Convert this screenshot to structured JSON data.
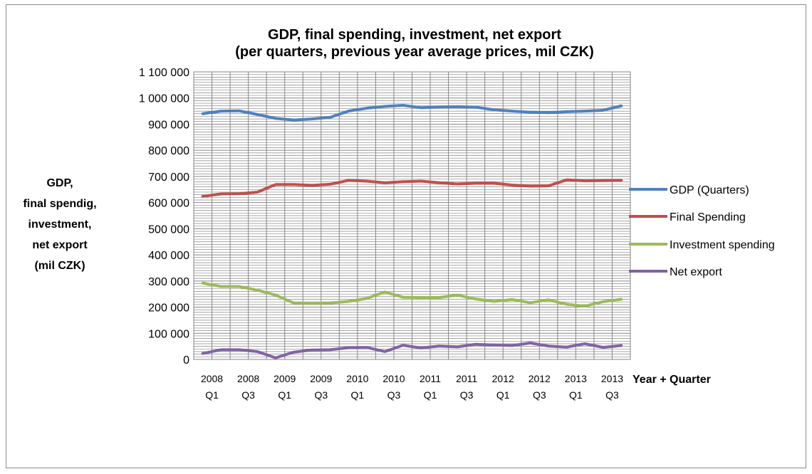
{
  "chart_data": {
    "type": "line",
    "title_lines": [
      "GDP, final spending, investment, net export",
      "(per quarters, previous year average prices, mil CZK)"
    ],
    "ylabel_lines": [
      "GDP,",
      "final spendig,",
      "investment,",
      "net export",
      "(mil CZK)"
    ],
    "xlabel": "Year + Quarter",
    "ylim": [
      0,
      1100000
    ],
    "y_ticks": [
      "0",
      "100 000",
      "200 000",
      "300 000",
      "400 000",
      "500 000",
      "600 000",
      "700 000",
      "800 000",
      "900 000",
      "1 000 000",
      "1 100 000"
    ],
    "x": [
      "2008 Q1",
      "2008 Q2",
      "2008 Q3",
      "2008 Q4",
      "2009 Q1",
      "2009 Q2",
      "2009 Q3",
      "2009 Q4",
      "2010 Q1",
      "2010 Q2",
      "2010 Q3",
      "2010 Q4",
      "2011 Q1",
      "2011 Q2",
      "2011 Q3",
      "2011 Q4",
      "2012 Q1",
      "2012 Q2",
      "2012 Q3",
      "2012 Q4",
      "2013 Q1",
      "2013 Q2",
      "2013 Q3",
      "2013 Q4"
    ],
    "x_tick_labels": [
      [
        "2008",
        "Q1"
      ],
      [
        "2008",
        "Q3"
      ],
      [
        "2009",
        "Q1"
      ],
      [
        "2009",
        "Q3"
      ],
      [
        "2010",
        "Q1"
      ],
      [
        "2010",
        "Q3"
      ],
      [
        "2011",
        "Q1"
      ],
      [
        "2011",
        "Q3"
      ],
      [
        "2012",
        "Q1"
      ],
      [
        "2012",
        "Q3"
      ],
      [
        "2013",
        "Q1"
      ],
      [
        "2013",
        "Q3"
      ]
    ],
    "grid": true,
    "legend_position": "right",
    "series": [
      {
        "name": "GDP (Quarters)",
        "color": "#4f81bd",
        "values": [
          940000,
          950000,
          951000,
          937000,
          922000,
          916000,
          920000,
          926000,
          950000,
          961000,
          968000,
          972000,
          963000,
          966000,
          967000,
          965000,
          955000,
          950000,
          946000,
          944000,
          948000,
          950000,
          953000,
          970000
        ]
      },
      {
        "name": "Final Spending",
        "color": "#c0504d",
        "values": [
          624000,
          633000,
          634000,
          640000,
          669000,
          669000,
          666000,
          670000,
          685000,
          682000,
          676000,
          680000,
          682000,
          676000,
          671000,
          674000,
          674000,
          667000,
          663000,
          664000,
          687000,
          683000,
          684000,
          685000
        ]
      },
      {
        "name": "Investment spending",
        "color": "#9bbb59",
        "values": [
          292000,
          279000,
          279000,
          265000,
          246000,
          216000,
          215000,
          216000,
          222000,
          233000,
          258000,
          238000,
          237000,
          237000,
          246000,
          231000,
          222000,
          229000,
          217000,
          228000,
          211000,
          204000,
          221000,
          230000
        ]
      },
      {
        "name": "Net export",
        "color": "#8064a2",
        "values": [
          23000,
          37000,
          37000,
          30000,
          6000,
          28000,
          36000,
          37000,
          45000,
          46000,
          30000,
          54000,
          44000,
          51000,
          48000,
          58000,
          55000,
          53000,
          63000,
          51000,
          47000,
          60000,
          46000,
          53000
        ]
      }
    ]
  }
}
